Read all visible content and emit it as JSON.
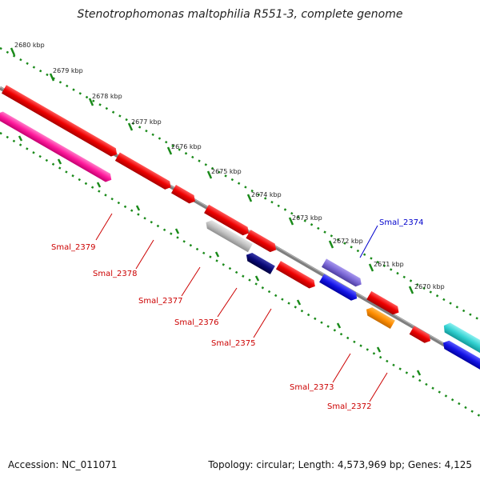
{
  "title": "Stenotrophomonas maltophilia R551-3, complete genome",
  "footer": {
    "accession": "Accession: NC_011071",
    "topology": "Topology: circular; Length: 4,573,969 bp; Genes: 4,125"
  },
  "ruler_labels": [
    "2680 kbp",
    "2679 kbp",
    "2678 kbp",
    "2677 kbp",
    "2676 kbp",
    "2675 kbp",
    "2674 kbp",
    "2673 kbp",
    "2672 kbp",
    "2671 kbp",
    "2670 kbp"
  ],
  "gene_labels": [
    {
      "name": "Smal_2379",
      "color": "#cc0000"
    },
    {
      "name": "Smal_2378",
      "color": "#cc0000"
    },
    {
      "name": "Smal_2377",
      "color": "#cc0000"
    },
    {
      "name": "Smal_2376",
      "color": "#cc0000"
    },
    {
      "name": "Smal_2375",
      "color": "#cc0000"
    },
    {
      "name": "Smal_2374",
      "color": "#0000cc"
    },
    {
      "name": "Smal_2373",
      "color": "#cc0000"
    },
    {
      "name": "Smal_2372",
      "color": "#cc0000"
    }
  ],
  "colors": {
    "ruler": "#1a8a1a",
    "backbone": "#7f7f7f",
    "red": "#ee0000",
    "pink": "#ff1a9c",
    "gray": "#bcbcbc",
    "navy": "#0a0a78",
    "purple": "#7b68d6",
    "blue": "#1414e6",
    "orange": "#ff8c00",
    "cyan": "#33d1d1"
  }
}
